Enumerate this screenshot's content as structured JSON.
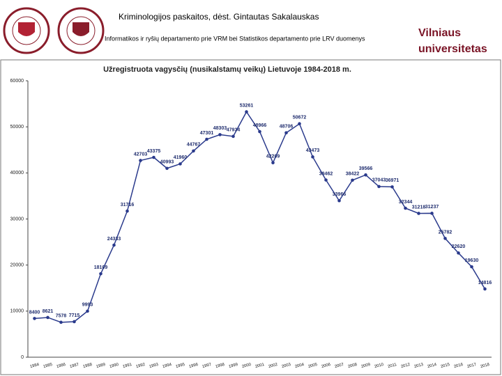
{
  "header": {
    "course": "Kriminologijos paskaitos, dėst. Gintautas Sakalauskas",
    "source": "Informatikos ir ryšių departamento prie VRM bei Statistikos departamento prie LRV duomenys",
    "brand": [
      "Vilniaus",
      "universitetas"
    ]
  },
  "chart_data": {
    "type": "line",
    "title": "Užregistruota vagysčių (nusikalstamų veikų) Lietuvoje 1984-2018 m.",
    "categories": [
      "1984",
      "1985",
      "1986",
      "1987",
      "1988",
      "1989",
      "1990",
      "1991",
      "1992",
      "1993",
      "1994",
      "1995",
      "1996",
      "1997",
      "1998",
      "1999",
      "2000",
      "2001",
      "2002",
      "2003",
      "2004",
      "2005",
      "2006",
      "2007",
      "2008",
      "2009",
      "2010",
      "2011",
      "2012",
      "2013",
      "2014",
      "2015",
      "2016",
      "2017",
      "2018"
    ],
    "values": [
      8400,
      8621,
      7578,
      7715,
      9993,
      18109,
      24333,
      31716,
      42703,
      43375,
      40993,
      41960,
      44767,
      47301,
      48303,
      47934,
      53261,
      48966,
      42209,
      48706,
      50672,
      43473,
      38462,
      33966,
      38422,
      39566,
      37043,
      36971,
      32344,
      31218,
      31237,
      25782,
      22620,
      19630,
      14816
    ],
    "color": "#2a3a8c",
    "ylim": [
      0,
      60000
    ],
    "yticks": [
      0,
      10000,
      20000,
      30000,
      40000,
      50000,
      60000
    ],
    "grid": false
  }
}
